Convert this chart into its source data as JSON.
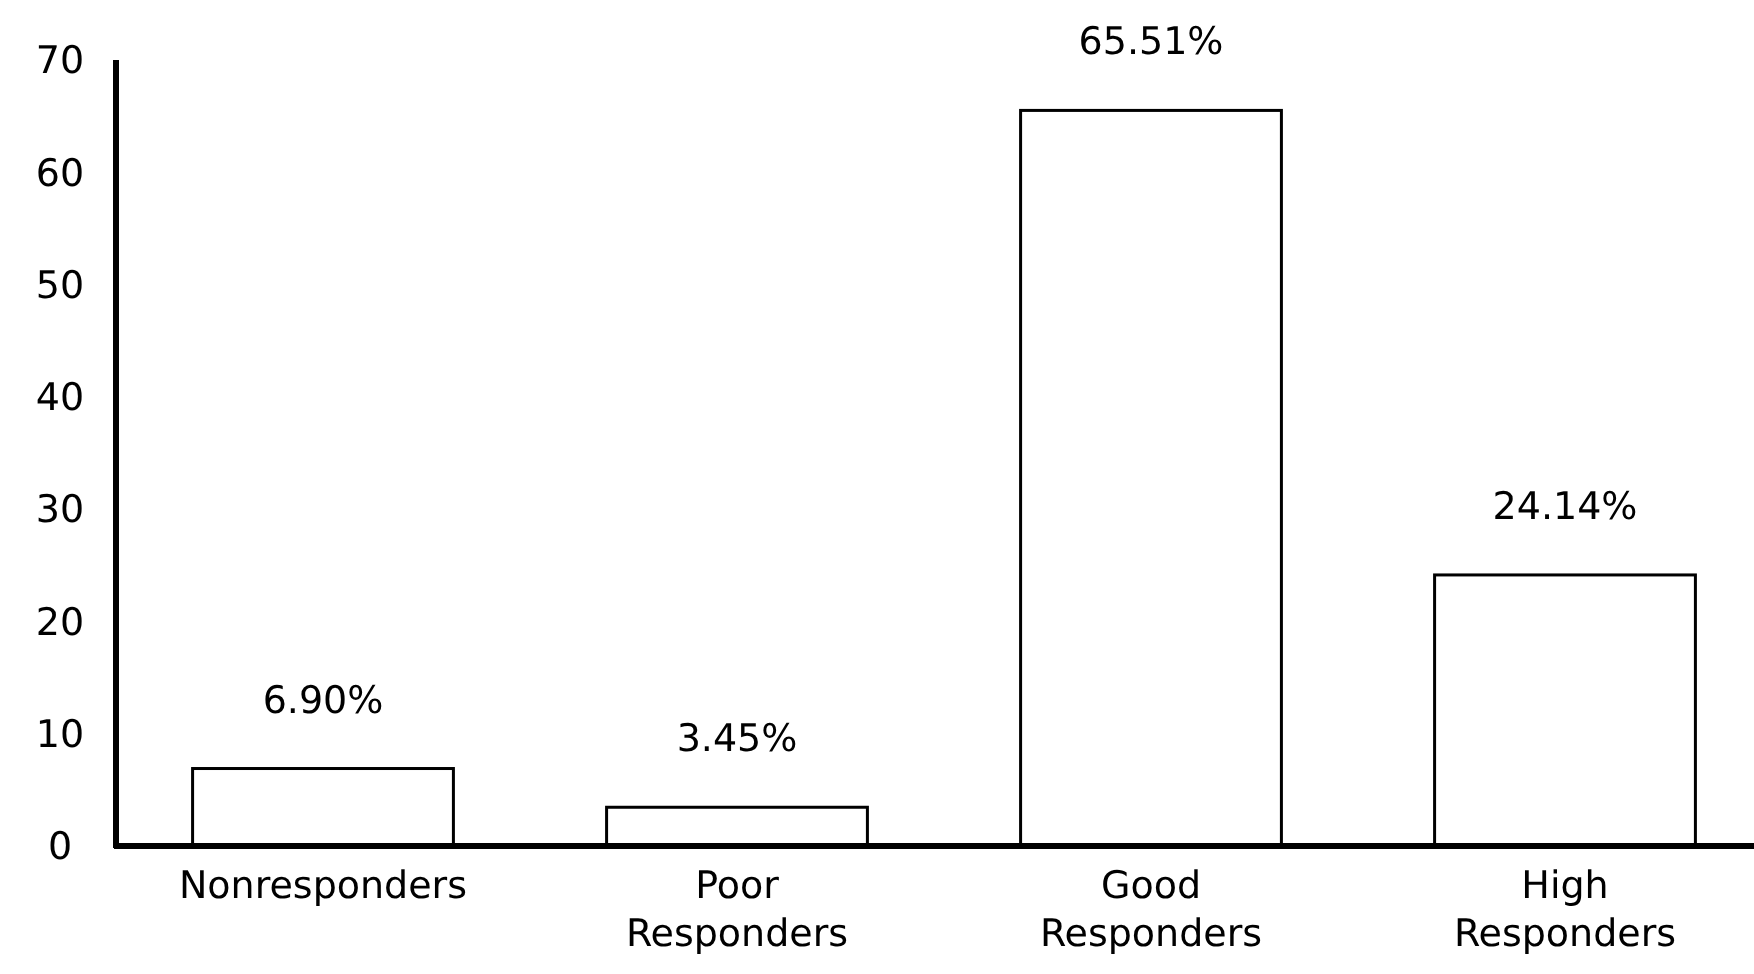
{
  "chart_data": {
    "type": "bar",
    "categories": [
      "Nonresponders",
      "Poor Responders",
      "Good Responders",
      "High Responders"
    ],
    "values": [
      6.9,
      3.45,
      65.51,
      24.14
    ],
    "value_labels": [
      "6.90%",
      "3.45%",
      "65.51%",
      "24.14%"
    ],
    "color": "#ffffff",
    "ylim": [
      0,
      70
    ],
    "yticks": [
      0,
      10,
      20,
      30,
      40,
      50,
      60,
      70
    ],
    "grid": false
  }
}
